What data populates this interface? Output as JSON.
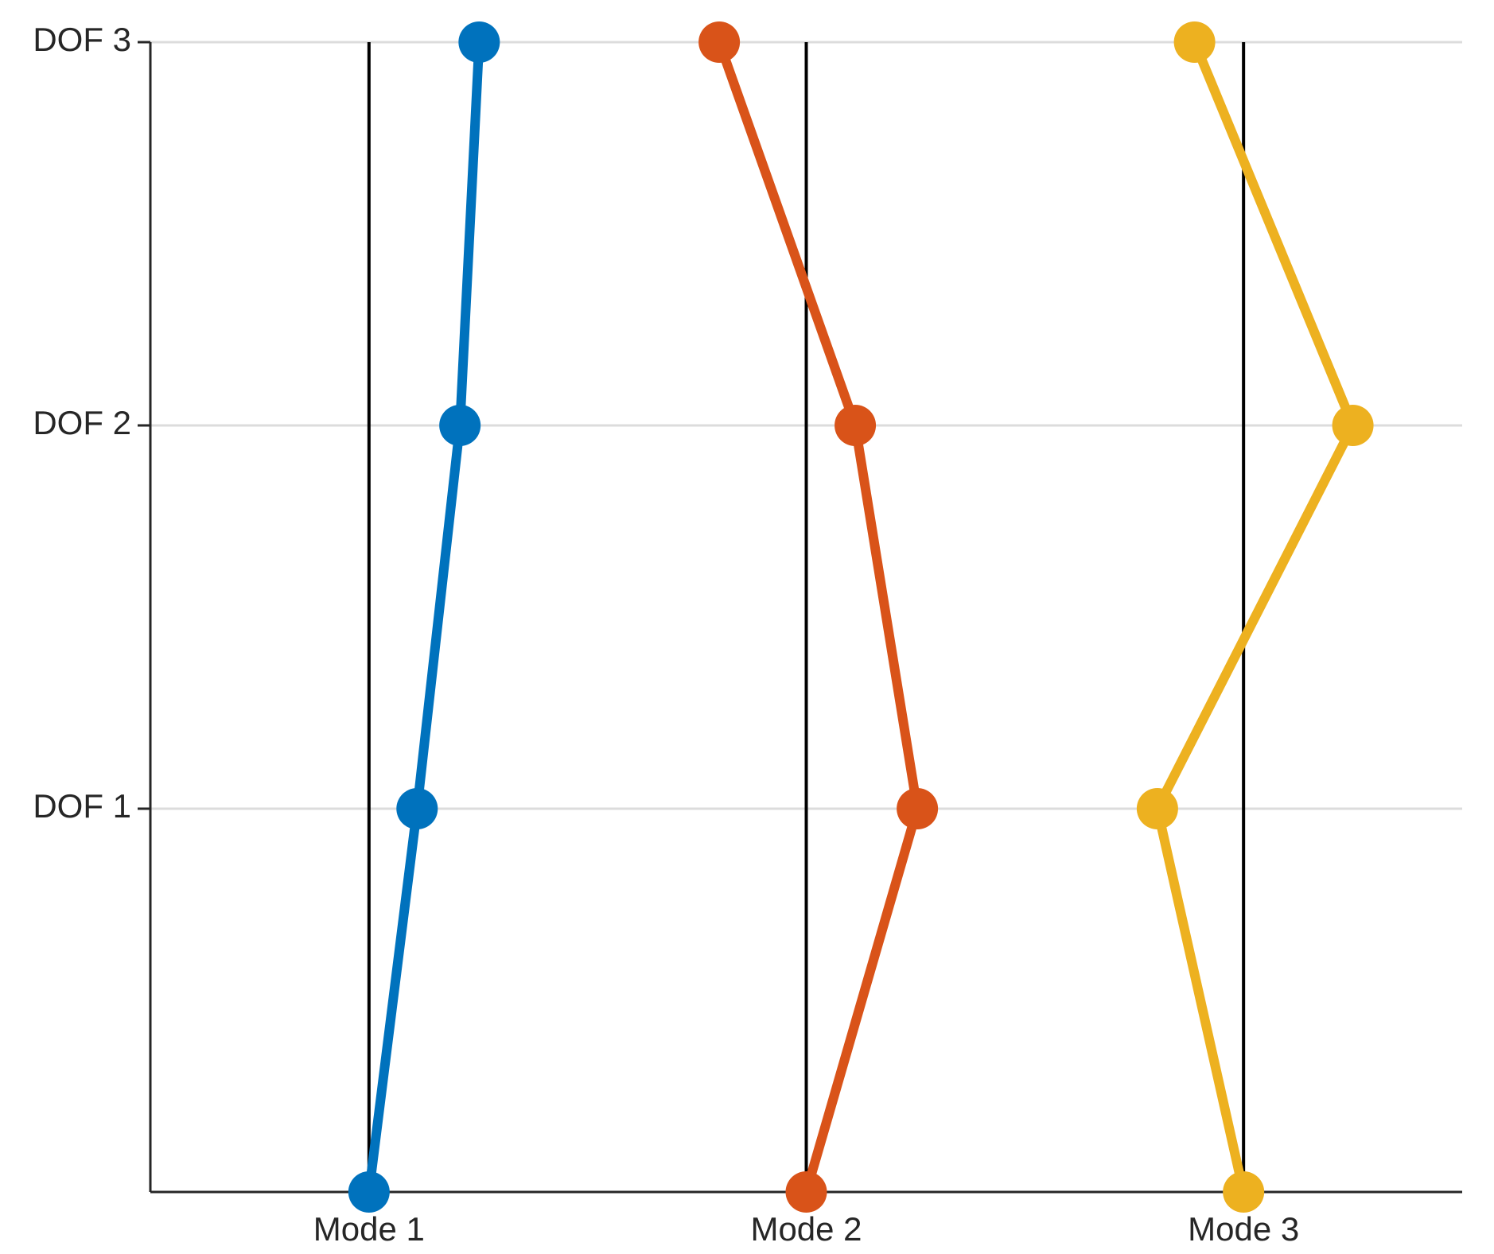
{
  "chart_data": {
    "type": "line",
    "xlim": [
      0.5,
      3.5
    ],
    "xticks": [
      {
        "value": 1,
        "label": "Mode 1"
      },
      {
        "value": 2,
        "label": "Mode 2"
      },
      {
        "value": 3,
        "label": "Mode 3"
      }
    ],
    "ylim": [
      0,
      3
    ],
    "yticks": [
      {
        "value": 1,
        "label": "DOF 1"
      },
      {
        "value": 2,
        "label": "DOF 2"
      },
      {
        "value": 3,
        "label": "DOF 3"
      }
    ],
    "grid": true,
    "series": [
      {
        "color": "#0072bd",
        "x": [
          1.0,
          1.11,
          1.208,
          1.252
        ],
        "values": [
          0,
          1,
          2,
          3
        ]
      },
      {
        "color": "#d95319",
        "x": [
          2.0,
          2.254,
          2.112,
          1.801
        ],
        "values": [
          0,
          1,
          2,
          3
        ]
      },
      {
        "color": "#edb120",
        "x": [
          3.0,
          2.803,
          3.25,
          2.888
        ],
        "values": [
          0,
          1,
          2,
          3
        ]
      }
    ]
  }
}
